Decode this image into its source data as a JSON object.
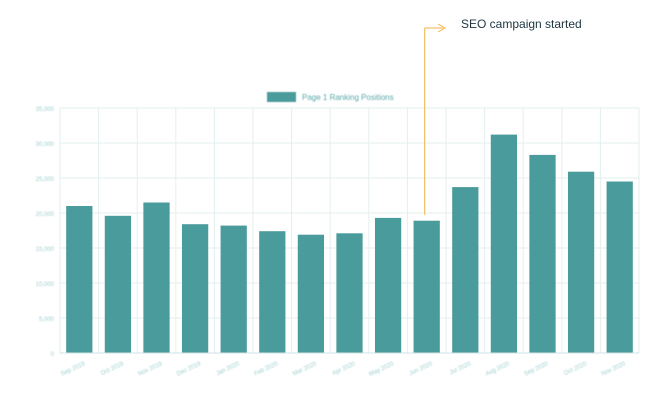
{
  "colors": {
    "bar": "#4a9b9b",
    "grid": "#e3efef",
    "axis_text": "#9fcfcf",
    "annotation_line": "#f1b14a",
    "annotation_text": "#1c3540",
    "legend_text": "#5aa8aa"
  },
  "annotation": {
    "label": "SEO campaign started",
    "category": "Jun 2020"
  },
  "chart_data": {
    "type": "bar",
    "title": "",
    "xlabel": "",
    "ylabel": "",
    "legend": {
      "position": "top-center",
      "entries": [
        "Page 1 Ranking Positions"
      ]
    },
    "grid": true,
    "ylim": [
      0,
      35000
    ],
    "yticks": [
      0,
      5000,
      10000,
      15000,
      20000,
      25000,
      30000,
      35000
    ],
    "ytick_labels": [
      "0",
      "5,000",
      "10,000",
      "15,000",
      "20,000",
      "25,000",
      "30,000",
      "35,000"
    ],
    "categories": [
      "Sep 2019",
      "Oct 2019",
      "Nov 2019",
      "Dec 2019",
      "Jan 2020",
      "Feb 2020",
      "Mar 2020",
      "Apr 2020",
      "May 2020",
      "Jun 2020",
      "Jul 2020",
      "Aug 2020",
      "Sep 2020",
      "Oct 2020",
      "Nov 2020"
    ],
    "series": [
      {
        "name": "Page 1 Ranking Positions",
        "values": [
          21000,
          19600,
          21500,
          18400,
          18200,
          17400,
          16900,
          17100,
          19300,
          18900,
          23700,
          31200,
          28300,
          25900,
          24500
        ]
      }
    ]
  }
}
